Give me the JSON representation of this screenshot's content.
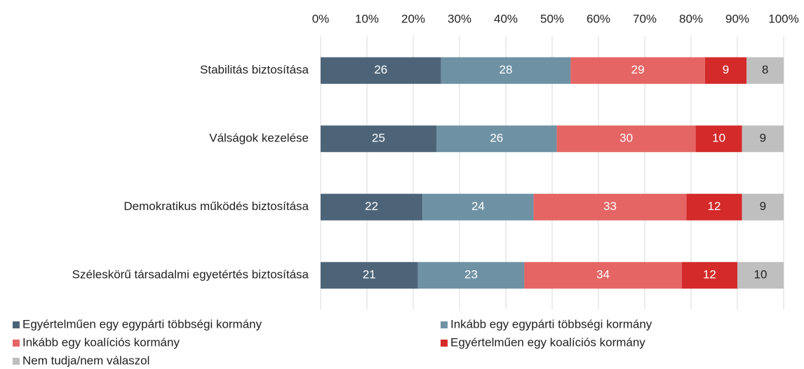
{
  "chart_data": {
    "type": "stacked_bar_horizontal",
    "categories": [
      "Stabilitás biztosítása",
      "Válságok kezelése",
      "Demokratikus működés biztosítása",
      "Széleskörű társadalmi egyetértés biztosítása"
    ],
    "series": [
      {
        "name": "Egyértelműen egy egypárti többségi kormány",
        "color": "#4d6478",
        "values": [
          26,
          25,
          22,
          21
        ]
      },
      {
        "name": "Inkább egy egypárti többségi kormány",
        "color": "#6f91a4",
        "values": [
          28,
          26,
          24,
          23
        ]
      },
      {
        "name": "Inkább egy koalíciós kormány",
        "color": "#e56565",
        "values": [
          29,
          30,
          33,
          34
        ]
      },
      {
        "name": "Egyértelműen egy koalíciós kormány",
        "color": "#d42a2a",
        "values": [
          9,
          10,
          12,
          12
        ]
      },
      {
        "name": "Nem tudja/nem válaszol",
        "color": "#bfbfbf",
        "values": [
          8,
          9,
          9,
          10
        ]
      }
    ],
    "xlim": [
      0,
      100
    ],
    "xticks": [
      {
        "value": 0,
        "label": "0%"
      },
      {
        "value": 10,
        "label": "10%"
      },
      {
        "value": 20,
        "label": "20%"
      },
      {
        "value": 30,
        "label": "30%"
      },
      {
        "value": 40,
        "label": "40%"
      },
      {
        "value": 50,
        "label": "50%"
      },
      {
        "value": 60,
        "label": "60%"
      },
      {
        "value": 70,
        "label": "70%"
      },
      {
        "value": 80,
        "label": "80%"
      },
      {
        "value": 90,
        "label": "90%"
      },
      {
        "value": 100,
        "label": "100%"
      }
    ],
    "grid": true
  }
}
